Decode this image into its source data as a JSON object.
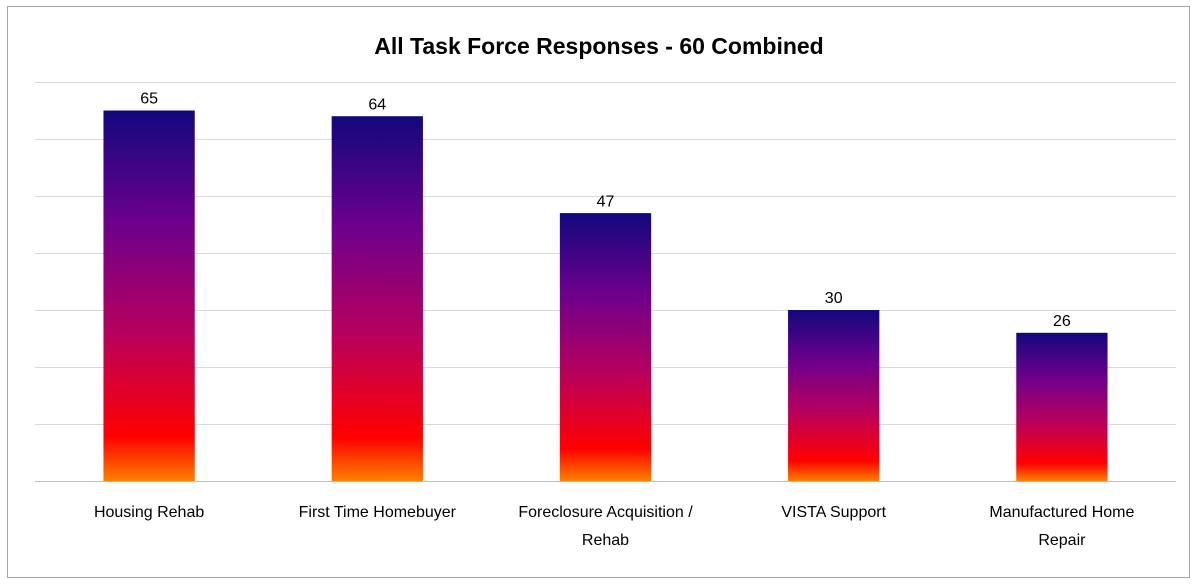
{
  "chart_data": {
    "type": "bar",
    "title": "All Task Force Responses - 60 Combined",
    "categories": [
      "Housing Rehab",
      "First Time Homebuyer",
      "Foreclosure Acquisition / Rehab",
      "VISTA Support",
      "Manufactured Home Repair"
    ],
    "values": [
      65,
      64,
      47,
      30,
      26
    ],
    "gradient_colors": [
      "#12087e",
      "#6c008c",
      "#b8005c",
      "#ff0000",
      "#ff8000"
    ],
    "ylim": [
      0,
      70
    ],
    "yticks": [
      0,
      10,
      20,
      30,
      40,
      50,
      60,
      70
    ],
    "grid": true
  }
}
